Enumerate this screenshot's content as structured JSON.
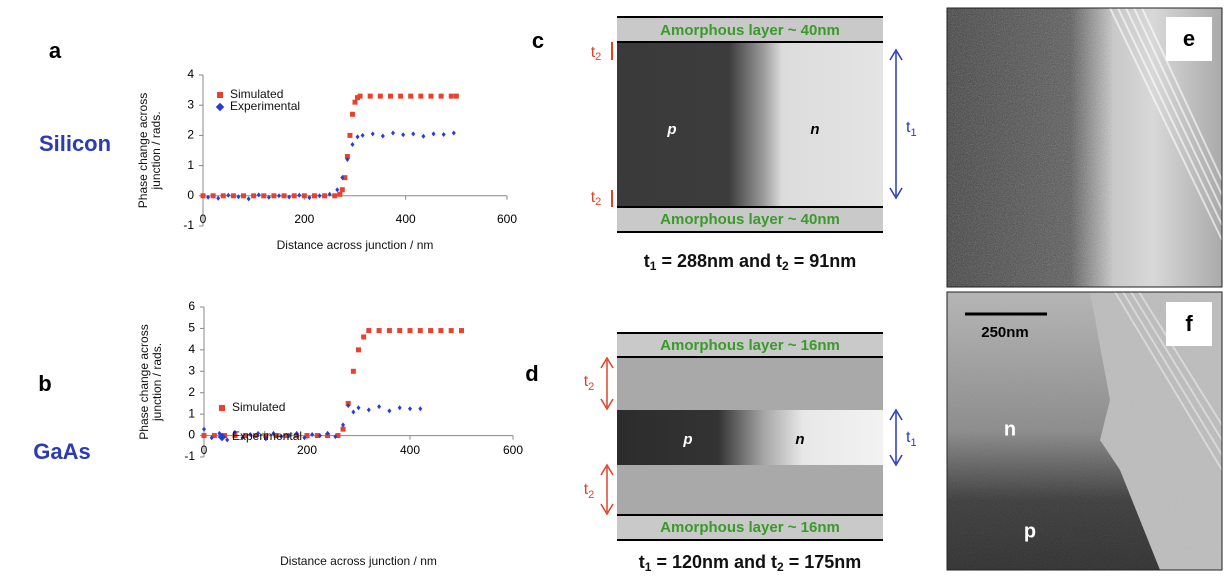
{
  "row_labels": [
    "Silicon",
    "GaAs"
  ],
  "panel_labels": [
    "a",
    "b",
    "c",
    "d",
    "e",
    "f"
  ],
  "chart_data": [
    {
      "type": "scatter",
      "y_label": [
        "Phase change across",
        "junction / rads."
      ],
      "x_label": "Distance across junction / nm",
      "xlim": [
        0,
        600
      ],
      "xticks": [
        0,
        200,
        400,
        600
      ],
      "ylim": [
        -1,
        4
      ],
      "yticks": [
        -1,
        0,
        1,
        2,
        3,
        4
      ],
      "series": [
        {
          "name": "Simulated",
          "color": "#e8412c",
          "marker": "square",
          "x": [
            0,
            20,
            40,
            60,
            80,
            100,
            120,
            140,
            160,
            180,
            200,
            220,
            240,
            260,
            270,
            275,
            280,
            285,
            290,
            295,
            300,
            305,
            310,
            330,
            350,
            370,
            390,
            410,
            430,
            450,
            470,
            490,
            500
          ],
          "values": [
            0,
            0,
            0,
            0,
            0,
            0,
            0,
            0,
            0,
            0,
            0,
            0,
            0,
            0,
            0.05,
            0.2,
            0.6,
            1.3,
            2.0,
            2.7,
            3.1,
            3.25,
            3.3,
            3.3,
            3.3,
            3.3,
            3.3,
            3.3,
            3.3,
            3.3,
            3.3,
            3.3,
            3.3
          ]
        },
        {
          "name": "Experimental",
          "color": "#2a3bd9",
          "marker": "diamond",
          "x": [
            10,
            30,
            50,
            70,
            90,
            110,
            130,
            150,
            170,
            190,
            210,
            230,
            250,
            265,
            275,
            285,
            295,
            305,
            315,
            335,
            355,
            375,
            395,
            415,
            435,
            455,
            475,
            495
          ],
          "values": [
            -0.05,
            -0.08,
            0.02,
            -0.03,
            -0.1,
            0.03,
            -0.05,
            0.0,
            -0.04,
            0.02,
            -0.06,
            0.0,
            0.05,
            0.2,
            0.6,
            1.2,
            1.7,
            1.95,
            2.0,
            2.05,
            1.98,
            2.08,
            2.02,
            2.05,
            1.97,
            2.05,
            2.03,
            2.08
          ]
        }
      ]
    },
    {
      "type": "scatter",
      "y_label": [
        "Phase change across",
        "junction / rads."
      ],
      "x_label": "Distance across junction / nm",
      "xlim": [
        0,
        600
      ],
      "xticks": [
        0,
        200,
        400,
        600
      ],
      "ylim": [
        -1,
        6
      ],
      "yticks": [
        -1,
        0,
        1,
        2,
        3,
        4,
        5,
        6
      ],
      "series": [
        {
          "name": "Simulated",
          "color": "#e8412c",
          "marker": "square",
          "x": [
            0,
            20,
            40,
            60,
            80,
            100,
            120,
            140,
            160,
            180,
            200,
            220,
            240,
            260,
            270,
            280,
            290,
            300,
            310,
            320,
            340,
            360,
            380,
            400,
            420,
            440,
            460,
            480,
            500
          ],
          "values": [
            0,
            0,
            0,
            0,
            0,
            0,
            0,
            0,
            0,
            0,
            0,
            0,
            0,
            0,
            0.3,
            1.5,
            3.0,
            4.0,
            4.6,
            4.9,
            4.9,
            4.9,
            4.9,
            4.9,
            4.9,
            4.9,
            4.9,
            4.9,
            4.9
          ]
        },
        {
          "name": "Experimental",
          "color": "#2a3bd9",
          "marker": "diamond",
          "x": [
            0,
            15,
            30,
            45,
            60,
            75,
            90,
            105,
            120,
            135,
            150,
            165,
            180,
            195,
            210,
            225,
            240,
            255,
            270,
            280,
            290,
            300,
            320,
            340,
            360,
            380,
            400,
            420
          ],
          "values": [
            0.3,
            -0.1,
            0.1,
            -0.2,
            0.15,
            -0.1,
            0.05,
            0.1,
            -0.15,
            0.1,
            -0.05,
            0.0,
            0.1,
            -0.1,
            0.05,
            0.0,
            0.1,
            -0.05,
            0.5,
            1.4,
            1.1,
            1.3,
            1.2,
            1.35,
            1.15,
            1.3,
            1.25,
            1.25
          ]
        }
      ]
    }
  ],
  "diagrams": [
    {
      "top_layer": "Amorphous layer ~ 40nm",
      "bottom_layer": "Amorphous layer ~ 40nm",
      "p": "p",
      "n": "n",
      "t1": [
        "t",
        "1"
      ],
      "t2": [
        "t",
        "2"
      ],
      "caption": [
        "t",
        "1",
        " = 288nm and t",
        "2",
        " = 91nm"
      ]
    },
    {
      "top_layer": "Amorphous layer ~ 16nm",
      "bottom_layer": "Amorphous layer ~ 16nm",
      "p": "p",
      "n": "n",
      "t1": [
        "t",
        "1"
      ],
      "t2": [
        "t",
        "2"
      ],
      "caption": [
        "t",
        "1",
        " = 120nm and t",
        "2",
        " = 175nm"
      ]
    }
  ],
  "micrograph_f": {
    "scale_bar": "250nm",
    "regions": [
      "n",
      "p"
    ]
  }
}
